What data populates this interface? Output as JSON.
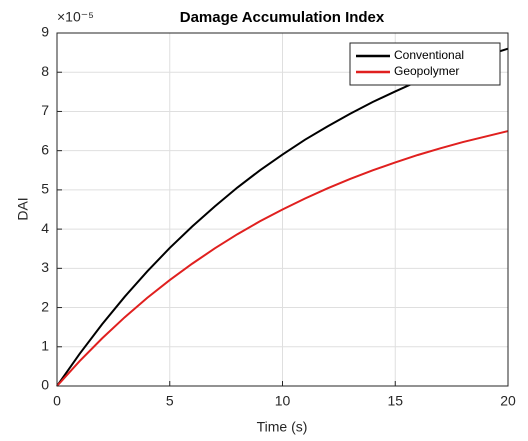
{
  "chart_data": {
    "type": "line",
    "title": "Damage Accumulation Index",
    "x_label": "Time (s)",
    "y_label": "DAI",
    "y_multiplier": "×10⁻⁵",
    "x": [
      0,
      1,
      2,
      3,
      4,
      5,
      6,
      7,
      8,
      9,
      10,
      11,
      12,
      13,
      14,
      15,
      16,
      17,
      18,
      19,
      20
    ],
    "series": [
      {
        "name": "Conventional",
        "color": "#000000",
        "values": [
          0,
          0.818,
          1.575,
          2.274,
          2.921,
          3.52,
          4.07,
          4.58,
          5.06,
          5.5,
          5.9,
          6.28,
          6.62,
          6.94,
          7.24,
          7.51,
          7.77,
          8.0,
          8.22,
          8.42,
          8.6
        ]
      },
      {
        "name": "Geopolymer",
        "color": "#e0201f",
        "values": [
          0,
          0.632,
          1.214,
          1.751,
          2.247,
          2.7,
          3.12,
          3.51,
          3.87,
          4.2,
          4.5,
          4.78,
          5.04,
          5.28,
          5.5,
          5.7,
          5.89,
          6.06,
          6.22,
          6.36,
          6.5
        ]
      }
    ],
    "xlim": [
      0,
      20
    ],
    "xticks": [
      0,
      5,
      10,
      15,
      20
    ],
    "ylim": [
      0,
      9
    ],
    "yticks": [
      0,
      1,
      2,
      3,
      4,
      5,
      6,
      7,
      8,
      9
    ],
    "grid": true,
    "legend": "top-right"
  }
}
